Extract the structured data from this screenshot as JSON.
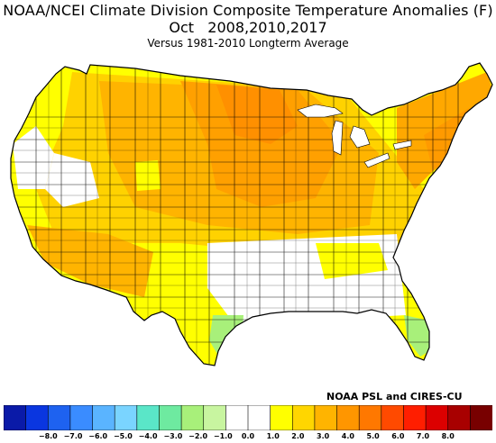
{
  "title": {
    "line1": "NOAA/NCEI Climate Division Composite Temperature Anomalies (F)",
    "line2_month": "Oct",
    "line2_years": "2008,2010,2017",
    "line3": "Versus 1981-2010 Longterm Average"
  },
  "credit": "NOAA PSL and CIRES-CU",
  "legend": {
    "colors": [
      "#0a1aa8",
      "#0a36e0",
      "#1e62f0",
      "#3a8cff",
      "#5ab4ff",
      "#7ad4ff",
      "#5ae6c8",
      "#6eeaa0",
      "#a8f07a",
      "#c8f5a0",
      "#ffffff",
      "#ffffff",
      "#ffff00",
      "#ffd600",
      "#ffb400",
      "#ff9600",
      "#ff7800",
      "#ff4a00",
      "#ff1e00",
      "#dc0000",
      "#a80000",
      "#780000"
    ],
    "ticks": [
      "-8.0",
      "-7.0",
      "-6.0",
      "-5.0",
      "-4.0",
      "-3.0",
      "-2.0",
      "-1.0",
      "0.0",
      "1.0",
      "2.0",
      "3.0",
      "4.0",
      "5.0",
      "6.0",
      "7.0",
      "8.0"
    ]
  },
  "map": {
    "region": "Contiguous United States climate divisions",
    "anomaly_colors": {
      "strong_warm": "#ff9a00",
      "warm": "#ffb400",
      "moderate": "#ffd200",
      "mild": "#ffff00",
      "near_zero": "#ffffff",
      "cool": "#a8f07a"
    }
  }
}
